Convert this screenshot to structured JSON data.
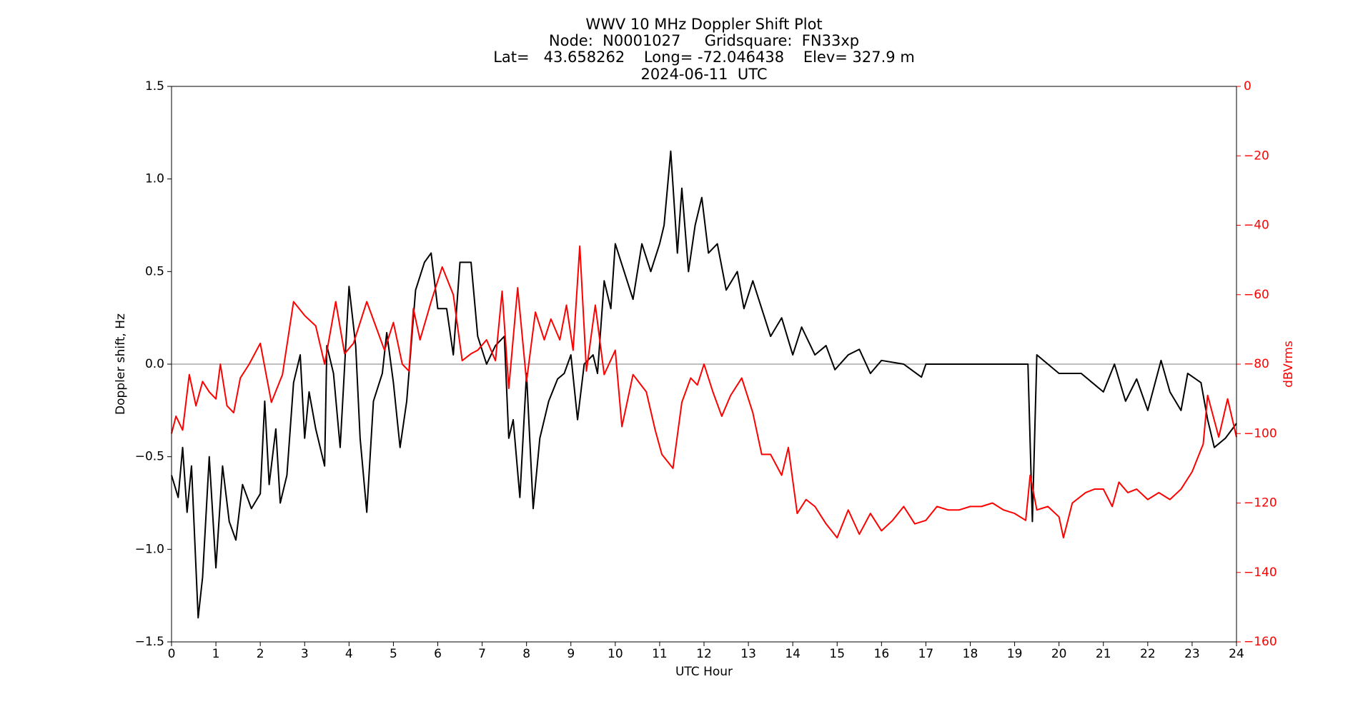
{
  "chart_data": {
    "type": "line",
    "title": [
      "WWV 10 MHz Doppler Shift Plot",
      "Node:  N0001027     Gridsquare:  FN33xp",
      "Lat=   43.658262    Long= -72.046438    Elev= 327.9 m",
      "2024-06-11  UTC"
    ],
    "x_label": "UTC Hour",
    "y_label": "Doppler shift, Hz",
    "y2_label": "dBVrms",
    "y2_color": "#ff0000",
    "xlim": [
      0,
      24
    ],
    "xticks": [
      0,
      1,
      2,
      3,
      4,
      5,
      6,
      7,
      8,
      9,
      10,
      11,
      12,
      13,
      14,
      15,
      16,
      17,
      18,
      19,
      20,
      21,
      22,
      23,
      24
    ],
    "ylim": [
      -1.5,
      1.5
    ],
    "yticks": [
      {
        "value": -1.5,
        "label": "−1.5"
      },
      {
        "value": -1,
        "label": "−1.0"
      },
      {
        "value": -0.5,
        "label": "−0.5"
      },
      {
        "value": 0,
        "label": "0.0"
      },
      {
        "value": 0.5,
        "label": "0.5"
      },
      {
        "value": 1,
        "label": "1.0"
      },
      {
        "value": 1.5,
        "label": "1.5"
      }
    ],
    "y2lim": [
      -160,
      0
    ],
    "y2ticks": [
      {
        "value": -160,
        "label": "−160"
      },
      {
        "value": -140,
        "label": "−140"
      },
      {
        "value": -120,
        "label": "−120"
      },
      {
        "value": -100,
        "label": "−100"
      },
      {
        "value": -80,
        "label": "−80"
      },
      {
        "value": -60,
        "label": "−60"
      },
      {
        "value": -40,
        "label": "−40"
      },
      {
        "value": -20,
        "label": "−20"
      },
      0
    ],
    "reference_line": 0,
    "reference_color": "#999999",
    "series": [
      {
        "name": "Doppler shift",
        "color": "#000000",
        "axis": "y",
        "x": [
          0,
          0.15,
          0.25,
          0.35,
          0.45,
          0.6,
          0.7,
          0.85,
          1,
          1.15,
          1.3,
          1.45,
          1.6,
          1.8,
          2,
          2.1,
          2.2,
          2.35,
          2.45,
          2.6,
          2.75,
          2.9,
          3,
          3.1,
          3.25,
          3.45,
          3.5,
          3.65,
          3.8,
          4,
          4.15,
          4.25,
          4.4,
          4.55,
          4.75,
          4.85,
          5,
          5.15,
          5.3,
          5.5,
          5.7,
          5.85,
          6,
          6.2,
          6.35,
          6.5,
          6.75,
          6.9,
          7.1,
          7.3,
          7.5,
          7.6,
          7.7,
          7.85,
          8,
          8.15,
          8.3,
          8.5,
          8.7,
          8.85,
          9,
          9.15,
          9.3,
          9.5,
          9.6,
          9.75,
          9.9,
          10,
          10.2,
          10.4,
          10.6,
          10.8,
          11,
          11.1,
          11.25,
          11.4,
          11.5,
          11.65,
          11.8,
          11.95,
          12.1,
          12.3,
          12.5,
          12.75,
          12.9,
          13.1,
          13.3,
          13.5,
          13.75,
          14,
          14.2,
          14.5,
          14.75,
          14.95,
          15.25,
          15.5,
          15.75,
          16,
          16.5,
          16.9,
          17,
          17.5,
          18,
          18.5,
          19,
          19.3,
          19.4,
          19.5,
          19.75,
          20,
          20.5,
          20.75,
          21,
          21.25,
          21.5,
          21.75,
          22,
          22.3,
          22.5,
          22.75,
          22.9,
          23.2,
          23.35,
          23.5,
          23.75,
          24
        ],
        "values": [
          -0.6,
          -0.72,
          -0.45,
          -0.8,
          -0.55,
          -1.37,
          -1.15,
          -0.5,
          -1.1,
          -0.55,
          -0.85,
          -0.95,
          -0.65,
          -0.78,
          -0.7,
          -0.2,
          -0.65,
          -0.35,
          -0.75,
          -0.6,
          -0.1,
          0.05,
          -0.4,
          -0.15,
          -0.35,
          -0.55,
          0.1,
          -0.05,
          -0.45,
          0.42,
          0.1,
          -0.4,
          -0.8,
          -0.2,
          -0.05,
          0.17,
          -0.1,
          -0.45,
          -0.2,
          0.4,
          0.55,
          0.6,
          0.3,
          0.3,
          0.05,
          0.55,
          0.55,
          0.15,
          0,
          0.1,
          0.15,
          -0.4,
          -0.3,
          -0.72,
          -0.05,
          -0.78,
          -0.4,
          -0.2,
          -0.08,
          -0.05,
          0.05,
          -0.3,
          0,
          0.05,
          -0.05,
          0.45,
          0.3,
          0.65,
          0.5,
          0.35,
          0.65,
          0.5,
          0.65,
          0.75,
          1.15,
          0.6,
          0.95,
          0.5,
          0.75,
          0.9,
          0.6,
          0.65,
          0.4,
          0.5,
          0.3,
          0.45,
          0.3,
          0.15,
          0.25,
          0.05,
          0.2,
          0.05,
          0.1,
          -0.03,
          0.05,
          0.08,
          -0.05,
          0.02,
          0,
          -0.07,
          0,
          0,
          0,
          0,
          0,
          0,
          -0.85,
          0.05,
          0,
          -0.05,
          -0.05,
          -0.1,
          -0.15,
          0,
          -0.2,
          -0.08,
          -0.25,
          0.02,
          -0.15,
          -0.25,
          -0.05,
          -0.1,
          -0.3,
          -0.45,
          -0.4,
          -0.32
        ]
      },
      {
        "name": "dBVrms",
        "color": "#ff0000",
        "axis": "y2",
        "x": [
          0,
          0.1,
          0.25,
          0.4,
          0.55,
          0.7,
          0.85,
          1,
          1.1,
          1.25,
          1.4,
          1.55,
          1.75,
          2,
          2.25,
          2.5,
          2.75,
          3,
          3.25,
          3.45,
          3.7,
          3.9,
          4.1,
          4.4,
          4.6,
          4.8,
          5,
          5.2,
          5.35,
          5.45,
          5.6,
          5.85,
          6.1,
          6.35,
          6.55,
          6.75,
          6.9,
          7.1,
          7.3,
          7.45,
          7.6,
          7.8,
          8,
          8.2,
          8.4,
          8.55,
          8.75,
          8.9,
          9.05,
          9.2,
          9.35,
          9.55,
          9.75,
          10,
          10.15,
          10.4,
          10.7,
          10.9,
          11.05,
          11.3,
          11.5,
          11.7,
          11.85,
          12,
          12.2,
          12.4,
          12.6,
          12.85,
          13.1,
          13.3,
          13.5,
          13.75,
          13.9,
          14.1,
          14.3,
          14.5,
          14.75,
          15,
          15.25,
          15.5,
          15.75,
          16,
          16.25,
          16.5,
          16.75,
          17,
          17.25,
          17.5,
          17.75,
          18,
          18.25,
          18.5,
          18.75,
          19,
          19.25,
          19.35,
          19.5,
          19.75,
          20,
          20.1,
          20.3,
          20.6,
          20.8,
          21,
          21.2,
          21.35,
          21.55,
          21.75,
          22,
          22.25,
          22.5,
          22.75,
          23,
          23.25,
          23.35,
          23.6,
          23.8,
          24
        ],
        "values": [
          -100,
          -95,
          -99,
          -83,
          -92,
          -85,
          -88,
          -90,
          -80,
          -92,
          -94,
          -84,
          -80,
          -74,
          -91,
          -83,
          -62,
          -66,
          -69,
          -80,
          -62,
          -77,
          -74,
          -62,
          -69,
          -76,
          -68,
          -80,
          -82,
          -64,
          -73,
          -62,
          -52,
          -60,
          -79,
          -77,
          -76,
          -73,
          -79,
          -59,
          -87,
          -58,
          -85,
          -65,
          -73,
          -67,
          -73,
          -63,
          -76,
          -46,
          -82,
          -63,
          -83,
          -76,
          -98,
          -83,
          -88,
          -99,
          -106,
          -110,
          -91,
          -84,
          -86,
          -80,
          -88,
          -95,
          -89,
          -84,
          -94,
          -106,
          -106,
          -112,
          -104,
          -123,
          -119,
          -121,
          -126,
          -130,
          -122,
          -129,
          -123,
          -128,
          -125,
          -121,
          -126,
          -125,
          -121,
          -122,
          -122,
          -121,
          -121,
          -120,
          -122,
          -123,
          -125,
          -112,
          -122,
          -121,
          -124,
          -130,
          -120,
          -117,
          -116,
          -116,
          -121,
          -114,
          -117,
          -116,
          -119,
          -117,
          -119,
          -116,
          -111,
          -103,
          -89,
          -101,
          -90,
          -101
        ]
      }
    ]
  }
}
